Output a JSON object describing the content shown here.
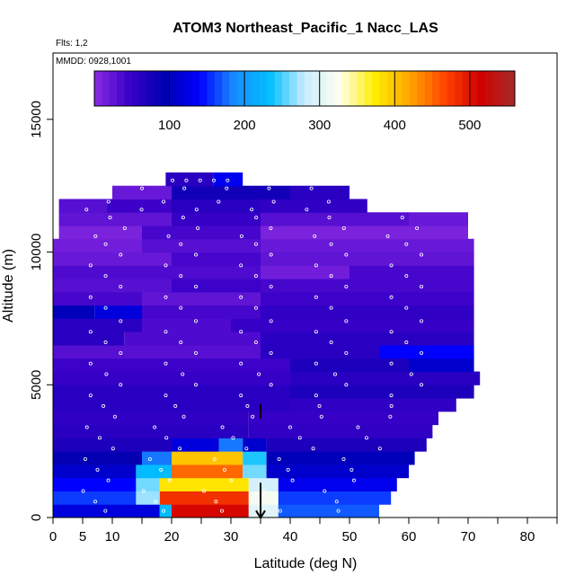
{
  "chart_data": {
    "type": "heatmap",
    "title": "ATOM3 Northeast_Pacific_1 Nacc_LAS",
    "flights_label": "Flts: 1,2",
    "date_label": "MMDD: 0928,1001",
    "xlabel": "Latitude (deg N)",
    "ylabel": "Altitude (m)",
    "xlim": [
      0,
      85
    ],
    "ylim": [
      0,
      17500
    ],
    "x_ticks": [
      0,
      5,
      10,
      20,
      30,
      40,
      50,
      60,
      70,
      80
    ],
    "x_tick_labels": [
      "0",
      "5",
      "10",
      "20",
      "30",
      "40",
      "50",
      "60",
      "70",
      "80"
    ],
    "x_minor_ticks": [
      15,
      25,
      35,
      45,
      55,
      65,
      75,
      85
    ],
    "y_ticks": [
      0,
      5000,
      10000,
      15000
    ],
    "y_tick_labels": [
      "0",
      "5000",
      "10000",
      "15000"
    ],
    "colorbar": {
      "range": [
        0,
        560
      ],
      "ticks": [
        100,
        200,
        300,
        400,
        500
      ],
      "tick_labels": [
        "100",
        "200",
        "300",
        "400",
        "500"
      ],
      "colors": [
        "#8b2be2",
        "#3a00c8",
        "#0000b0",
        "#0000ff",
        "#1a8cff",
        "#00bfff",
        "#c8ecff",
        "#fffff0",
        "#ffee00",
        "#ffa500",
        "#ff4500",
        "#d20000",
        "#a52a2a"
      ]
    },
    "grid": false,
    "layers": [
      {
        "alt": 250,
        "segments": [
          [
            0,
            18,
            120
          ],
          [
            18,
            20,
            230
          ],
          [
            20,
            33,
            510
          ],
          [
            33,
            38,
            300
          ],
          [
            38,
            55,
            170
          ]
        ]
      },
      {
        "alt": 750,
        "segments": [
          [
            0,
            14,
            160
          ],
          [
            14,
            18,
            270
          ],
          [
            18,
            33,
            480
          ],
          [
            33,
            38,
            320
          ],
          [
            38,
            57,
            160
          ]
        ]
      },
      {
        "alt": 1250,
        "segments": [
          [
            0,
            14,
            140
          ],
          [
            14,
            18,
            260
          ],
          [
            18,
            33,
            380
          ],
          [
            33,
            38,
            290
          ],
          [
            38,
            58,
            130
          ]
        ]
      },
      {
        "alt": 1750,
        "segments": [
          [
            0,
            14,
            110
          ],
          [
            14,
            20,
            230
          ],
          [
            20,
            32,
            450
          ],
          [
            32,
            36,
            260
          ],
          [
            36,
            60,
            110
          ]
        ]
      },
      {
        "alt": 2250,
        "segments": [
          [
            0,
            15,
            90
          ],
          [
            15,
            20,
            180
          ],
          [
            20,
            32,
            400
          ],
          [
            32,
            36,
            240
          ],
          [
            36,
            61,
            100
          ]
        ]
      },
      {
        "alt": 2750,
        "segments": [
          [
            0,
            20,
            70
          ],
          [
            20,
            28,
            120
          ],
          [
            28,
            32,
            180
          ],
          [
            32,
            36,
            110
          ],
          [
            36,
            63,
            70
          ]
        ]
      },
      {
        "alt": 3250,
        "segments": [
          [
            0,
            33,
            60
          ],
          [
            33,
            64,
            55
          ]
        ]
      },
      {
        "alt": 3750,
        "segments": [
          [
            0,
            33,
            55
          ],
          [
            33,
            65,
            50
          ]
        ]
      },
      {
        "alt": 4250,
        "segments": [
          [
            0,
            40,
            60
          ],
          [
            40,
            68,
            55
          ]
        ]
      },
      {
        "alt": 4750,
        "segments": [
          [
            0,
            40,
            60
          ],
          [
            40,
            71,
            70
          ]
        ]
      },
      {
        "alt": 5250,
        "segments": [
          [
            0,
            40,
            50
          ],
          [
            40,
            72,
            60
          ]
        ]
      },
      {
        "alt": 5750,
        "segments": [
          [
            0,
            40,
            45
          ],
          [
            40,
            60,
            70
          ],
          [
            60,
            71,
            110
          ]
        ]
      },
      {
        "alt": 6250,
        "segments": [
          [
            0,
            35,
            30
          ],
          [
            35,
            55,
            60
          ],
          [
            55,
            71,
            140
          ]
        ]
      },
      {
        "alt": 6750,
        "segments": [
          [
            0,
            12,
            60
          ],
          [
            12,
            35,
            35
          ],
          [
            35,
            71,
            60
          ]
        ]
      },
      {
        "alt": 7250,
        "segments": [
          [
            0,
            15,
            60
          ],
          [
            15,
            30,
            35
          ],
          [
            30,
            71,
            50
          ]
        ]
      },
      {
        "alt": 7750,
        "segments": [
          [
            0,
            7,
            100
          ],
          [
            7,
            15,
            120
          ],
          [
            15,
            35,
            40
          ],
          [
            35,
            71,
            55
          ]
        ]
      },
      {
        "alt": 8250,
        "segments": [
          [
            0,
            15,
            40
          ],
          [
            15,
            35,
            25
          ],
          [
            35,
            71,
            45
          ]
        ]
      },
      {
        "alt": 8750,
        "segments": [
          [
            0,
            20,
            30
          ],
          [
            20,
            35,
            45
          ],
          [
            35,
            71,
            40
          ]
        ]
      },
      {
        "alt": 9250,
        "segments": [
          [
            0,
            35,
            35
          ],
          [
            35,
            50,
            15
          ],
          [
            50,
            71,
            40
          ]
        ]
      },
      {
        "alt": 9750,
        "segments": [
          [
            0,
            20,
            20
          ],
          [
            20,
            35,
            40
          ],
          [
            35,
            71,
            25
          ]
        ]
      },
      {
        "alt": 10250,
        "segments": [
          [
            0,
            15,
            15
          ],
          [
            15,
            35,
            30
          ],
          [
            35,
            71,
            20
          ]
        ]
      },
      {
        "alt": 10750,
        "segments": [
          [
            1,
            15,
            10
          ],
          [
            15,
            35,
            40
          ],
          [
            35,
            70,
            10
          ]
        ]
      },
      {
        "alt": 11250,
        "segments": [
          [
            1,
            20,
            25
          ],
          [
            20,
            35,
            50
          ],
          [
            35,
            60,
            30
          ],
          [
            60,
            70,
            20
          ]
        ]
      },
      {
        "alt": 11750,
        "segments": [
          [
            1,
            9,
            30
          ],
          [
            9,
            20,
            45
          ],
          [
            20,
            35,
            60
          ],
          [
            35,
            53,
            55
          ]
        ]
      },
      {
        "alt": 12250,
        "segments": [
          [
            10,
            20,
            20
          ],
          [
            20,
            40,
            80
          ],
          [
            40,
            50,
            60
          ]
        ]
      },
      {
        "alt": 12750,
        "segments": [
          [
            19,
            27,
            60
          ],
          [
            27,
            32,
            130
          ]
        ]
      }
    ],
    "flight_track_altitudes": [
      12700,
      12400,
      11900,
      11600,
      11300,
      10900,
      10600,
      10300,
      9900,
      9500,
      9100,
      8700,
      8300,
      7900,
      7400,
      7000,
      6600,
      6200,
      5800,
      5400,
      5000,
      4600,
      4200,
      3800,
      3400,
      3000,
      2600,
      2200,
      1800,
      1400,
      1000,
      600,
      250
    ],
    "markers": [
      {
        "lat": 35,
        "alt": 4000,
        "dir": "up"
      },
      {
        "lat": 35,
        "alt": 700,
        "dir": "down"
      }
    ]
  }
}
